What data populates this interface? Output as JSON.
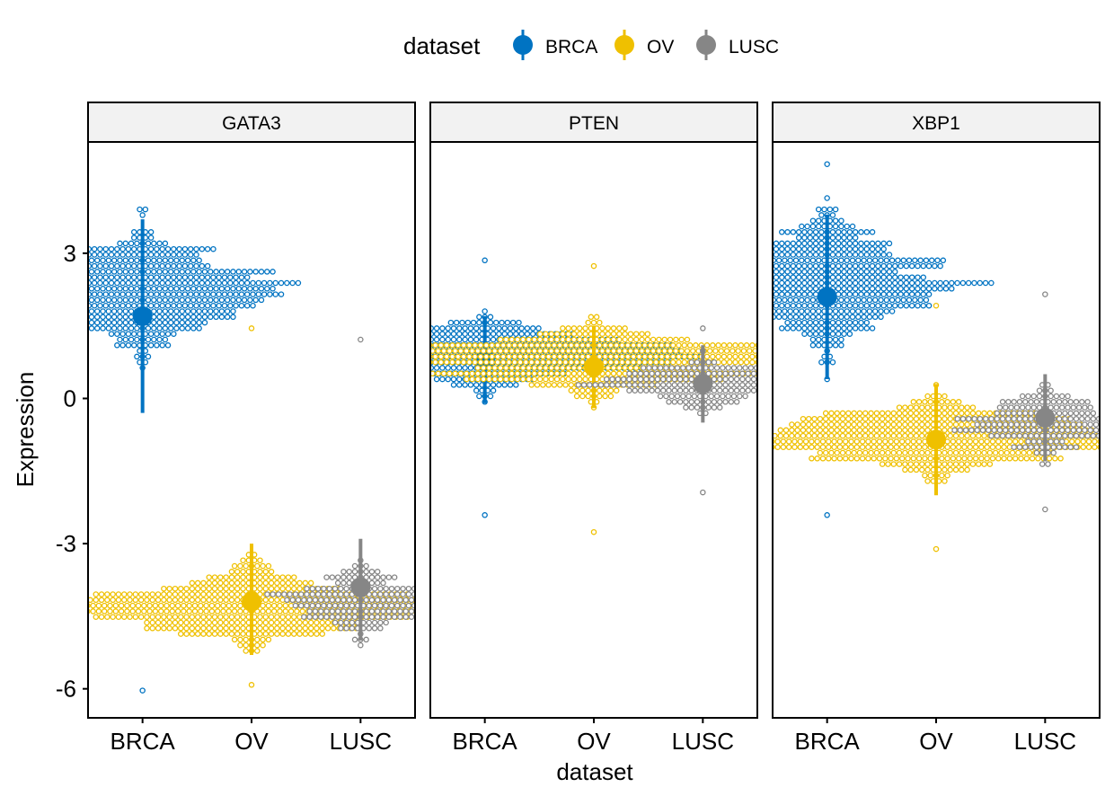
{
  "chart_data": {
    "type": "scatter",
    "subtype": "dot-plot with mean and standard deviation (faceted)",
    "ylabel": "Expression",
    "xlabel": "dataset",
    "ylim": [
      -6.6,
      5.3
    ],
    "yticks": [
      {
        "label": "3",
        "value": 3
      },
      {
        "label": "0",
        "value": 0
      },
      {
        "label": "-3",
        "value": -3
      },
      {
        "label": "-6",
        "value": -6
      }
    ],
    "categories": [
      "BRCA",
      "OV",
      "LUSC"
    ],
    "legend": {
      "title": "dataset",
      "position": "top",
      "items": [
        {
          "label": "BRCA",
          "color": "#0073C2"
        },
        {
          "label": "OV",
          "color": "#EFC000"
        },
        {
          "label": "LUSC",
          "color": "#868686"
        }
      ]
    },
    "grid": false,
    "facets": [
      {
        "title": "GATA3",
        "groups": [
          {
            "dataset": "BRCA",
            "color": "#0073C2",
            "mean": 1.7,
            "sd_low": -0.3,
            "sd_high": 3.7,
            "min": -6.0,
            "max": 3.9,
            "n": 580,
            "peak": 2.2,
            "spread": 1.4
          },
          {
            "dataset": "OV",
            "color": "#EFC000",
            "mean": -4.2,
            "sd_low": -5.3,
            "sd_high": -3.0,
            "min": -5.95,
            "max": 1.4,
            "n": 560,
            "peak": -4.3,
            "spread": 0.9
          },
          {
            "dataset": "LUSC",
            "color": "#868686",
            "mean": -3.9,
            "sd_low": -5.0,
            "sd_high": -2.9,
            "min": -5.05,
            "max": 1.2,
            "n": 200,
            "peak": -4.2,
            "spread": 0.9
          }
        ]
      },
      {
        "title": "PTEN",
        "groups": [
          {
            "dataset": "BRCA",
            "color": "#0073C2",
            "mean": 0.8,
            "sd_low": -0.1,
            "sd_high": 1.7,
            "min": -2.4,
            "max": 2.8,
            "n": 520,
            "peak": 0.9,
            "spread": 0.8
          },
          {
            "dataset": "OV",
            "color": "#EFC000",
            "mean": 0.65,
            "sd_low": -0.2,
            "sd_high": 1.5,
            "min": -2.75,
            "max": 2.75,
            "n": 560,
            "peak": 0.8,
            "spread": 0.8
          },
          {
            "dataset": "LUSC",
            "color": "#868686",
            "mean": 0.3,
            "sd_low": -0.5,
            "sd_high": 1.1,
            "min": -1.95,
            "max": 1.45,
            "n": 200,
            "peak": 0.3,
            "spread": 0.6
          }
        ]
      },
      {
        "title": "XBP1",
        "groups": [
          {
            "dataset": "BRCA",
            "color": "#0073C2",
            "mean": 2.1,
            "sd_low": 0.4,
            "sd_high": 3.8,
            "min": -2.4,
            "max": 4.8,
            "n": 580,
            "peak": 2.4,
            "spread": 1.6
          },
          {
            "dataset": "OV",
            "color": "#EFC000",
            "mean": -0.85,
            "sd_low": -2.0,
            "sd_high": 0.3,
            "min": -3.15,
            "max": 1.9,
            "n": 560,
            "peak": -0.8,
            "spread": 0.9
          },
          {
            "dataset": "LUSC",
            "color": "#868686",
            "mean": -0.4,
            "sd_low": -1.3,
            "sd_high": 0.5,
            "min": -2.3,
            "max": 2.2,
            "n": 200,
            "peak": -0.5,
            "spread": 0.8
          }
        ]
      }
    ]
  }
}
